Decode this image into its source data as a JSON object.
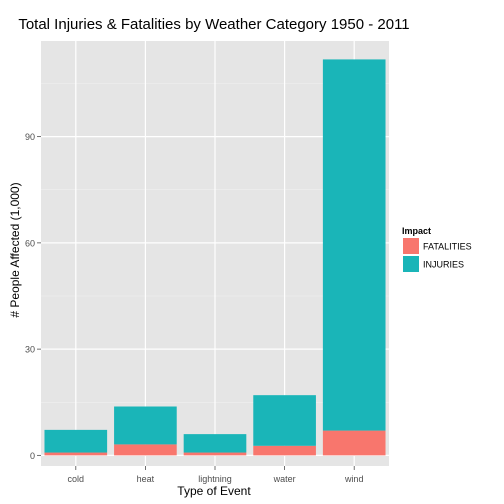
{
  "chart_data": {
    "type": "bar",
    "stacked": true,
    "title": "Total Injuries & Fatalities by Weather Category 1950 - 2011",
    "xlabel": "Type of Event",
    "ylabel": "# People Affected (1,000)",
    "categories": [
      "cold",
      "heat",
      "lightning",
      "water",
      "wind"
    ],
    "series": [
      {
        "name": "FATALITIES",
        "color": "#F8766D",
        "values": [
          0.8,
          3.1,
          0.8,
          2.7,
          7.0
        ]
      },
      {
        "name": "INJURIES",
        "color": "#1AB5B8",
        "values": [
          6.4,
          10.7,
          5.2,
          14.3,
          104.8
        ]
      }
    ],
    "ylim": [
      -3,
      117
    ],
    "yticks": [
      0,
      30,
      60,
      90
    ],
    "ytick_labels": [
      "0",
      "30",
      "60",
      "90"
    ],
    "grid": true,
    "panel_background": "#E5E5E5",
    "legend": {
      "title": "Impact",
      "position": "right"
    }
  }
}
